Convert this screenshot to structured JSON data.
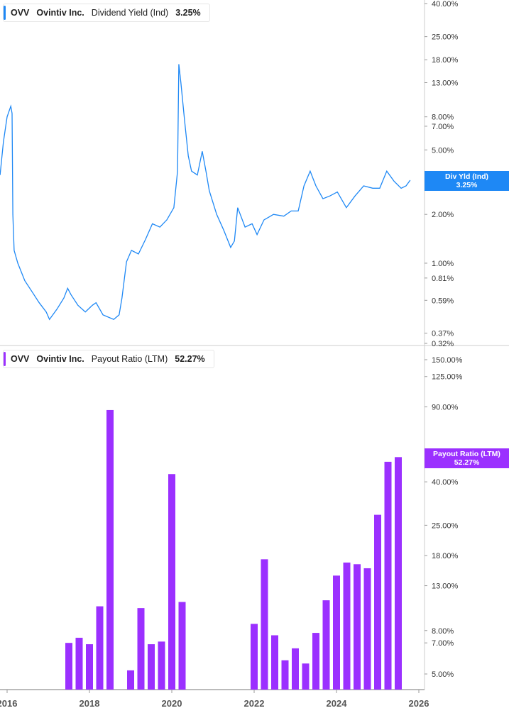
{
  "chart_data": [
    {
      "type": "line",
      "legend": {
        "ticker": "OVV",
        "company": "Ovintiv Inc.",
        "metric": "Dividend Yield (Ind)",
        "value": "3.25%"
      },
      "tag": {
        "label": "Div Yld (Ind)",
        "value": "3.25%"
      },
      "color": "#1e88f5",
      "yscale": "log",
      "ylim": [
        0.32,
        40
      ],
      "y_ticks": [
        "40.00%",
        "25.00%",
        "18.00%",
        "13.00%",
        "8.00%",
        "7.00%",
        "5.00%",
        "3.00%",
        "2.00%",
        "1.00%",
        "0.81%",
        "0.59%",
        "0.37%",
        "0.32%"
      ],
      "y_tick_values": [
        40,
        25,
        18,
        13,
        8,
        7,
        5,
        3,
        2,
        1,
        0.81,
        0.59,
        0.37,
        0.32
      ],
      "x": [
        2015.83,
        2015.91,
        2016.0,
        2016.09,
        2016.12,
        2016.14,
        2016.17,
        2016.26,
        2016.43,
        2016.6,
        2016.78,
        2016.95,
        2017.03,
        2017.21,
        2017.38,
        2017.47,
        2017.55,
        2017.72,
        2017.9,
        2018.07,
        2018.16,
        2018.33,
        2018.59,
        2018.72,
        2018.79,
        2018.9,
        2019.02,
        2019.19,
        2019.36,
        2019.53,
        2019.71,
        2019.88,
        2020.05,
        2020.14,
        2020.17,
        2020.22,
        2020.31,
        2020.4,
        2020.48,
        2020.62,
        2020.74,
        2020.83,
        2020.91,
        2021.09,
        2021.26,
        2021.43,
        2021.52,
        2021.6,
        2021.78,
        2021.95,
        2022.07,
        2022.24,
        2022.47,
        2022.72,
        2022.9,
        2023.07,
        2023.21,
        2023.36,
        2023.5,
        2023.67,
        2023.84,
        2024.02,
        2024.24,
        2024.45,
        2024.66,
        2024.88,
        2025.05,
        2025.22,
        2025.4,
        2025.57,
        2025.69,
        2025.79
      ],
      "y": [
        3.5,
        5.6,
        8.0,
        9.3,
        8.4,
        2.0,
        1.2,
        1.0,
        0.78,
        0.67,
        0.57,
        0.5,
        0.45,
        0.52,
        0.61,
        0.7,
        0.64,
        0.55,
        0.5,
        0.55,
        0.57,
        0.48,
        0.45,
        0.48,
        0.61,
        1.02,
        1.2,
        1.14,
        1.4,
        1.75,
        1.67,
        1.85,
        2.2,
        3.7,
        16.9,
        13.0,
        7.6,
        4.6,
        3.7,
        3.5,
        4.9,
        3.7,
        2.8,
        2.0,
        1.6,
        1.25,
        1.37,
        2.2,
        1.67,
        1.75,
        1.5,
        1.85,
        2.0,
        1.95,
        2.1,
        2.1,
        3.0,
        3.7,
        3.0,
        2.5,
        2.6,
        2.75,
        2.2,
        2.6,
        3.0,
        2.9,
        2.9,
        3.7,
        3.2,
        2.9,
        3.0,
        3.25
      ]
    },
    {
      "type": "bar",
      "legend": {
        "ticker": "OVV",
        "company": "Ovintiv Inc.",
        "metric": "Payout Ratio (LTM)",
        "value": "52.27%"
      },
      "tag": {
        "label": "Payout Ratio (LTM)",
        "value": "52.27%"
      },
      "color": "#9b30ff",
      "yscale": "log",
      "ylim": [
        4.3,
        150
      ],
      "y_ticks": [
        "150.00%",
        "125.00%",
        "90.00%",
        "40.00%",
        "25.00%",
        "18.00%",
        "13.00%",
        "8.00%",
        "7.00%",
        "5.00%"
      ],
      "y_tick_values": [
        150,
        125,
        90,
        40,
        25,
        18,
        13,
        8,
        7,
        5
      ],
      "x": [
        2017.5,
        2017.75,
        2018.0,
        2018.25,
        2018.5,
        2019.0,
        2019.25,
        2019.5,
        2019.75,
        2020.0,
        2020.25,
        2022.0,
        2022.25,
        2022.5,
        2022.75,
        2023.0,
        2023.25,
        2023.5,
        2023.75,
        2024.0,
        2024.25,
        2024.5,
        2024.75,
        2025.0,
        2025.25,
        2025.5
      ],
      "values": [
        7.0,
        7.4,
        6.9,
        10.4,
        87,
        5.2,
        10.2,
        6.9,
        7.1,
        43.5,
        10.9,
        8.6,
        17.3,
        7.6,
        5.8,
        6.6,
        5.6,
        7.8,
        11.1,
        14.5,
        16.7,
        16.4,
        15.7,
        28.0,
        49.7,
        52.27
      ]
    }
  ],
  "x_axis": {
    "ticks": [
      "2016",
      "2018",
      "2020",
      "2022",
      "2024",
      "2026"
    ],
    "tick_values": [
      2016,
      2018,
      2020,
      2022,
      2024,
      2026
    ]
  }
}
